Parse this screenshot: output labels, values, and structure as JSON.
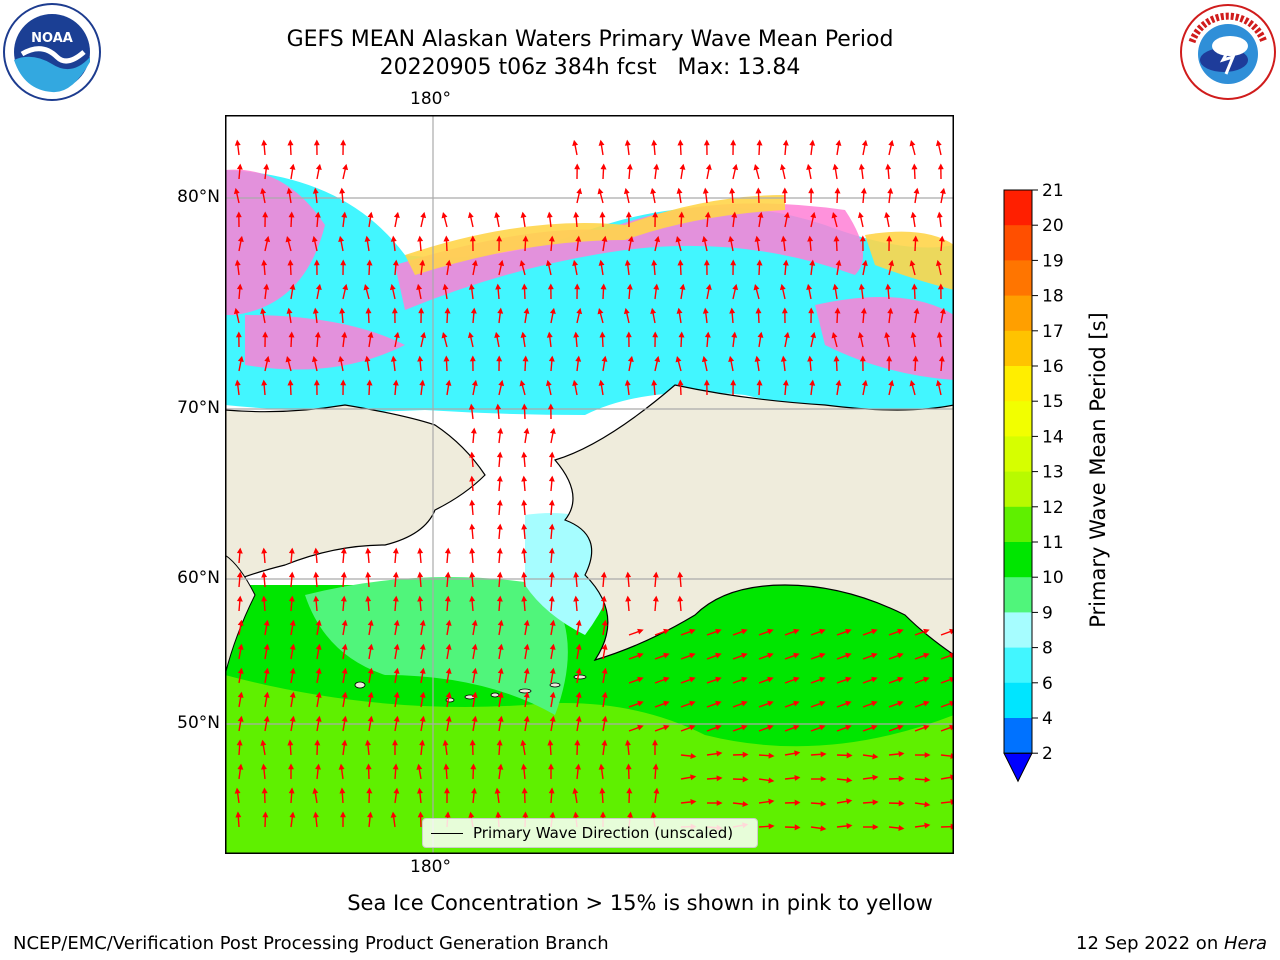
{
  "title": {
    "line1": "GEFS MEAN Alaskan Waters Primary Wave Mean Period",
    "line2": "20220905 t06z 384h fcst   Max: 13.84"
  },
  "axes": {
    "lon_top": "180°",
    "lon_bottom": "180°",
    "lat_labels": [
      "80°N",
      "70°N",
      "60°N",
      "50°N"
    ]
  },
  "legend": {
    "label": "Primary Wave Direction (unscaled)"
  },
  "colorbar": {
    "label": "Primary Wave Mean Period [s]",
    "ticks": [
      "2",
      "4",
      "6",
      "8",
      "9",
      "10",
      "11",
      "12",
      "13",
      "14",
      "15",
      "16",
      "17",
      "18",
      "19",
      "20",
      "21"
    ],
    "colors": [
      "#0072ff",
      "#00e5ff",
      "#42f6ff",
      "#a6fdff",
      "#50f57b",
      "#00e600",
      "#5ff000",
      "#b8fa00",
      "#d6ff00",
      "#f2ff00",
      "#ffee00",
      "#ffc300",
      "#ff9f00",
      "#ff7500",
      "#ff4f00",
      "#ff1f00"
    ],
    "under_color": "#0000ff"
  },
  "caption": "Sea Ice Concentration > 15% is shown in pink to yellow",
  "footer": {
    "left": "NCEP/EMC/Verification Post Processing Product Generation Branch",
    "right_prefix": "12 Sep 2022 on ",
    "right_host": "Hera"
  },
  "logos": {
    "left": "NOAA",
    "right": "NATIONAL WEATHER SERVICE"
  },
  "colors": {
    "land": "#efecdc",
    "ocean_cyan": "#42f6ff",
    "ocean_green": "#00e600",
    "ocean_lightgreen": "#5ff000",
    "ice_pink": "#ff7fd6",
    "arrow": "#ff0000"
  }
}
